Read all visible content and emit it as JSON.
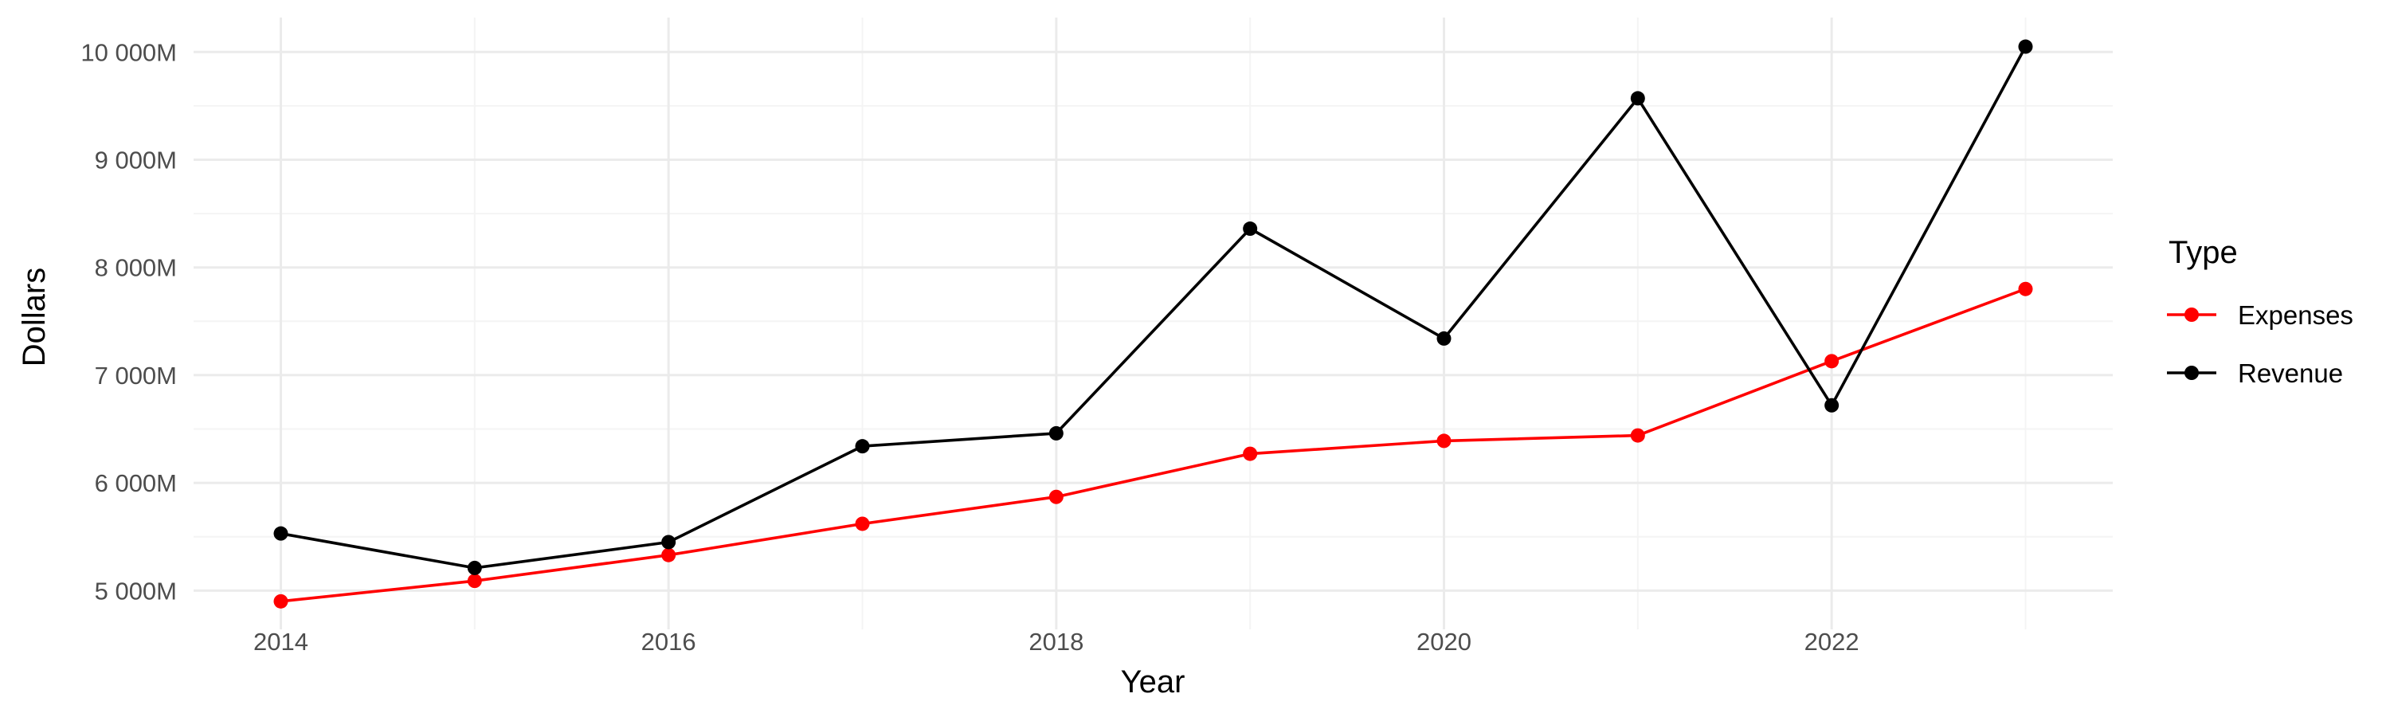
{
  "chart_data": {
    "type": "line",
    "title": "",
    "xlabel": "Year",
    "ylabel": "Dollars",
    "x": [
      2014,
      2015,
      2016,
      2017,
      2018,
      2019,
      2020,
      2021,
      2022,
      2023
    ],
    "xlim": [
      2013.55,
      2023.45
    ],
    "ylim": [
      4640,
      10320
    ],
    "x_ticks": [
      2014,
      2016,
      2018,
      2020,
      2022
    ],
    "x_tick_labels": [
      "2014",
      "2016",
      "2018",
      "2020",
      "2022"
    ],
    "y_ticks": [
      5000,
      6000,
      7000,
      8000,
      9000,
      10000
    ],
    "y_tick_labels": [
      "5 000M",
      "6 000M",
      "7 000M",
      "8 000M",
      "9 000M",
      "10 000M"
    ],
    "y_unit": "millions of dollars",
    "grid": true,
    "legend": {
      "title": "Type",
      "placement": "right"
    },
    "series": [
      {
        "name": "Expenses",
        "color": "#ff0000",
        "values": [
          4900,
          5090,
          5330,
          5620,
          5870,
          6270,
          6390,
          6440,
          7130,
          7800
        ]
      },
      {
        "name": "Revenue",
        "color": "#000000",
        "values": [
          5530,
          5210,
          5450,
          6340,
          6460,
          8360,
          7340,
          9570,
          6720,
          10050
        ]
      }
    ]
  }
}
